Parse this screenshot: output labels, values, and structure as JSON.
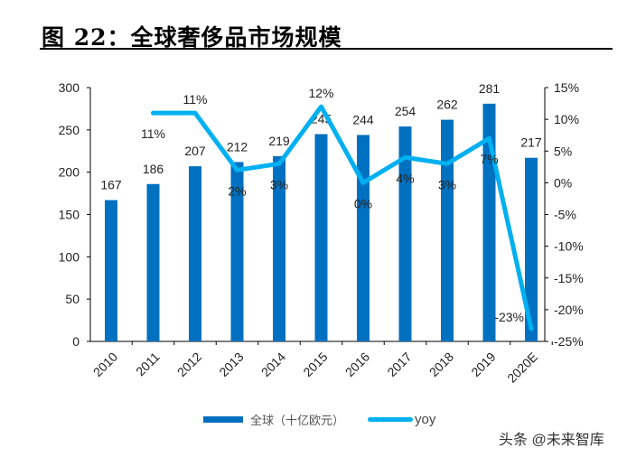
{
  "title": "图 22：全球奢侈品市场规模",
  "watermark": "头条 @未来智库",
  "chart_data": {
    "type": "bar+line",
    "categories": [
      "2010",
      "2011",
      "2012",
      "2013",
      "2014",
      "2015",
      "2016",
      "2017",
      "2018",
      "2019",
      "2020E"
    ],
    "series": [
      {
        "name": "全球（十亿欧元）",
        "type": "bar",
        "axis": "left",
        "color": "#0070C0",
        "values": [
          167,
          186,
          207,
          212,
          219,
          245,
          244,
          254,
          262,
          281,
          217
        ],
        "labels": [
          "167",
          "186",
          "207",
          "212",
          "219",
          "245",
          "244",
          "254",
          "262",
          "281",
          "217"
        ]
      },
      {
        "name": "yoy",
        "type": "line",
        "axis": "right",
        "color": "#00B0F0",
        "values": [
          null,
          11,
          11,
          2,
          3,
          12,
          0,
          4,
          3,
          7,
          -23
        ],
        "labels": [
          "",
          "11%",
          "11%",
          "2%",
          "3%",
          "12%",
          "0%",
          "4%",
          "3%",
          "7%",
          "-23%"
        ]
      }
    ],
    "left_axis": {
      "ylim": [
        0,
        300
      ],
      "ticks": [
        "0",
        "50",
        "100",
        "150",
        "200",
        "250",
        "300"
      ]
    },
    "right_axis": {
      "ylim": [
        -25,
        15
      ],
      "ticks": [
        "-25%",
        "-20%",
        "-15%",
        "-10%",
        "-5%",
        "0%",
        "5%",
        "10%",
        "15%"
      ]
    },
    "grid": false,
    "legend": "bottom"
  }
}
